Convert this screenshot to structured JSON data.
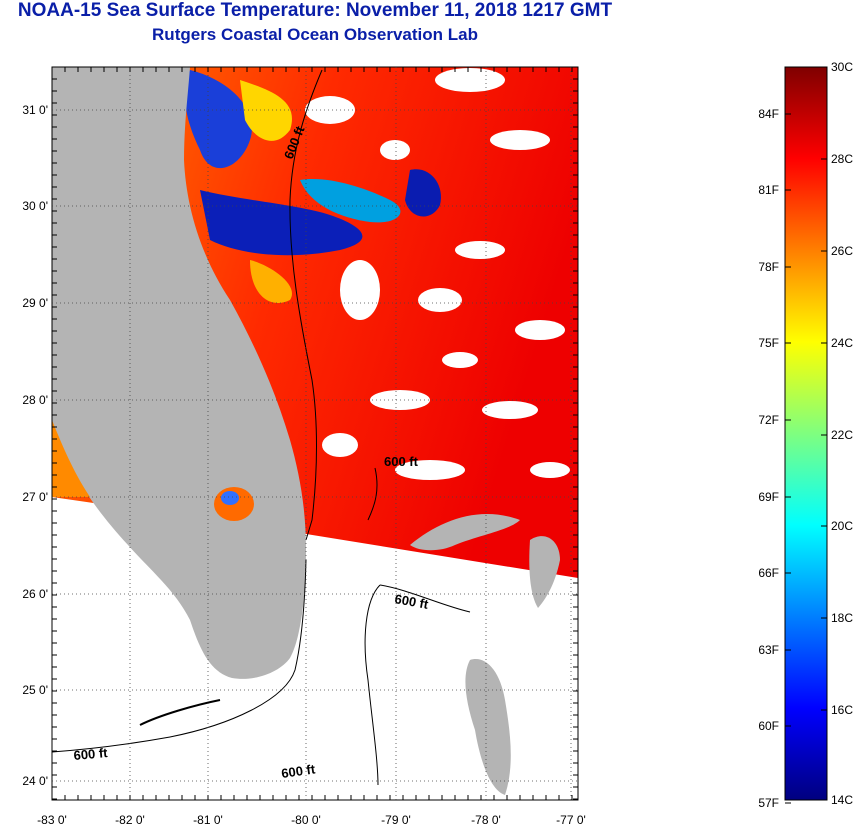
{
  "title": {
    "line1": "NOAA-15 Sea Surface Temperature:  November 11, 2018 1217 GMT",
    "line2": "Rutgers Coastal Ocean Observation Lab"
  },
  "map": {
    "lat_labels": [
      "31 0'",
      "30 0'",
      "29 0'",
      "28 0'",
      "27 0'",
      "26 0'",
      "25 0'",
      "24 0'"
    ],
    "lon_labels": [
      "-83 0'",
      "-82 0'",
      "-81 0'",
      "-80 0'",
      "-79 0'",
      "-78 0'",
      "-77 0'"
    ],
    "contour_labels": [
      "600 ft",
      "600 ft",
      "600 ft",
      "600 ft",
      "600 ft"
    ],
    "colors": {
      "land": "#b4b4b4",
      "water": "#ffffff",
      "contour": "#000000"
    }
  },
  "colorbar": {
    "fahrenheit": [
      "84F",
      "81F",
      "78F",
      "75F",
      "72F",
      "69F",
      "66F",
      "63F",
      "60F",
      "57F"
    ],
    "celsius": [
      "30C",
      "28C",
      "26C",
      "24C",
      "22C",
      "20C",
      "18C",
      "16C",
      "14C"
    ],
    "range_c": [
      14,
      30
    ],
    "colors": [
      "#00007f",
      "#0000ff",
      "#007fff",
      "#00ffff",
      "#7fff7f",
      "#ffff00",
      "#ff7f00",
      "#ff0000",
      "#7f0000"
    ]
  }
}
